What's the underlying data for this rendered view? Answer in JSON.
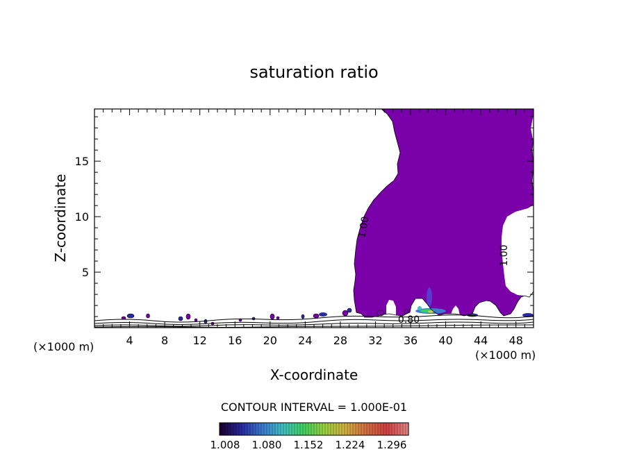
{
  "chart_data": {
    "type": "contour",
    "title": "saturation ratio",
    "xlabel": "X-coordinate",
    "ylabel": "Z-coordinate",
    "x_unit_left": "(×1000 m)",
    "x_unit_right": "(×1000 m)",
    "xlim": [
      0,
      50
    ],
    "ylim": [
      0,
      19.7
    ],
    "x_ticks": [
      4,
      8,
      12,
      16,
      20,
      24,
      28,
      32,
      36,
      40,
      44,
      48
    ],
    "y_ticks": [
      5,
      10,
      15
    ],
    "contour_labels": [
      {
        "text": "1.00",
        "x": 31.0,
        "y": 9.0,
        "rotate": -80
      },
      {
        "text": "1.00",
        "x": 47.0,
        "y": 6.5,
        "rotate": -90
      },
      {
        "text": "0.80",
        "x": 35.8,
        "y": 0.45,
        "rotate": 0
      }
    ],
    "fill_color": "#7a00aa",
    "contour_interval_text": "CONTOUR INTERVAL = 1.000E-01",
    "colorbar": {
      "labels": [
        "1.008",
        "1.080",
        "1.152",
        "1.224",
        "1.296"
      ],
      "colors": [
        "#1a0030",
        "#2a2aa0",
        "#3a7ad0",
        "#40c0c0",
        "#40d060",
        "#9ad040",
        "#d0b040",
        "#d07040",
        "#d04040",
        "#e08080"
      ]
    }
  }
}
